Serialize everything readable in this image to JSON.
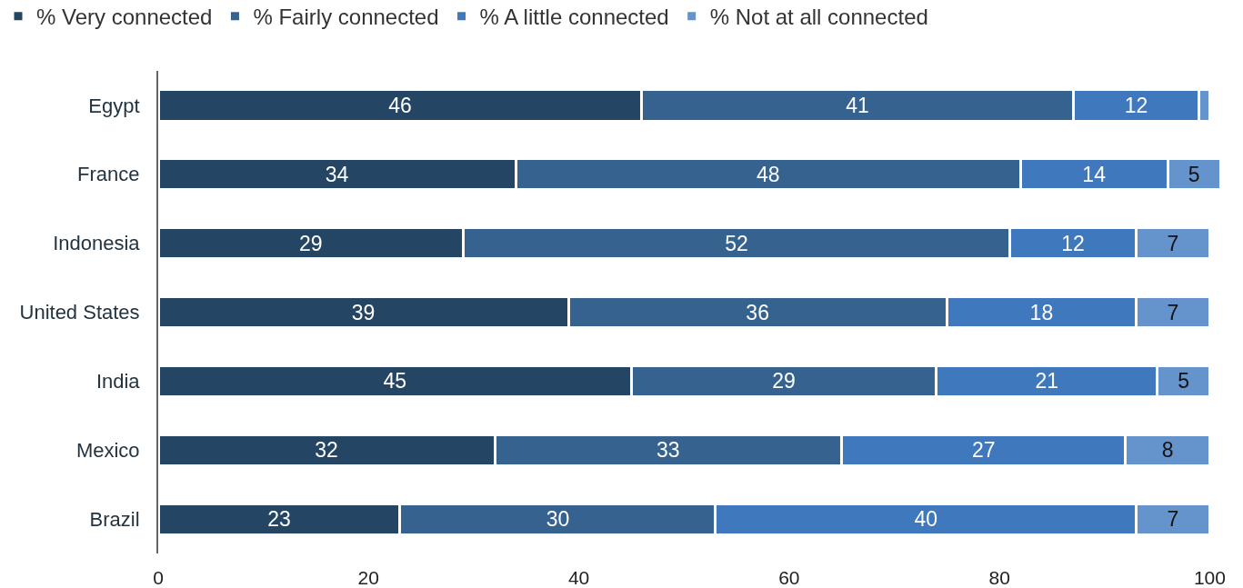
{
  "chart_data": {
    "type": "bar",
    "orientation": "horizontal",
    "stacked": true,
    "categories": [
      "Egypt",
      "France",
      "Indonesia",
      "United States",
      "India",
      "Mexico",
      "Brazil"
    ],
    "series": [
      {
        "name": "% Very connected",
        "color": "#244563",
        "values": [
          46,
          34,
          29,
          39,
          45,
          32,
          23
        ],
        "value_labels": [
          "46",
          "34",
          "29",
          "39",
          "45",
          "32",
          "23"
        ]
      },
      {
        "name": "% Fairly connected",
        "color": "#36628f",
        "values": [
          41,
          48,
          52,
          36,
          29,
          33,
          30
        ],
        "value_labels": [
          "41",
          "48",
          "52",
          "36",
          "29",
          "33",
          "30"
        ]
      },
      {
        "name": "% A little connected",
        "color": "#3f78bd",
        "values": [
          12,
          14,
          12,
          18,
          21,
          27,
          40
        ],
        "value_labels": [
          "12",
          "14",
          "12",
          "18",
          "21",
          "27",
          "40"
        ]
      },
      {
        "name": "% Not at all connected",
        "color": "#6593cb",
        "values": [
          1,
          5,
          7,
          7,
          5,
          8,
          7
        ],
        "value_labels": [
          null,
          "5",
          "7",
          "7",
          "5",
          "8",
          "7"
        ]
      }
    ],
    "xlim": [
      0,
      101
    ],
    "xticks": [
      0,
      20,
      40,
      60,
      80,
      100
    ],
    "grid": false,
    "legend": "top left"
  }
}
